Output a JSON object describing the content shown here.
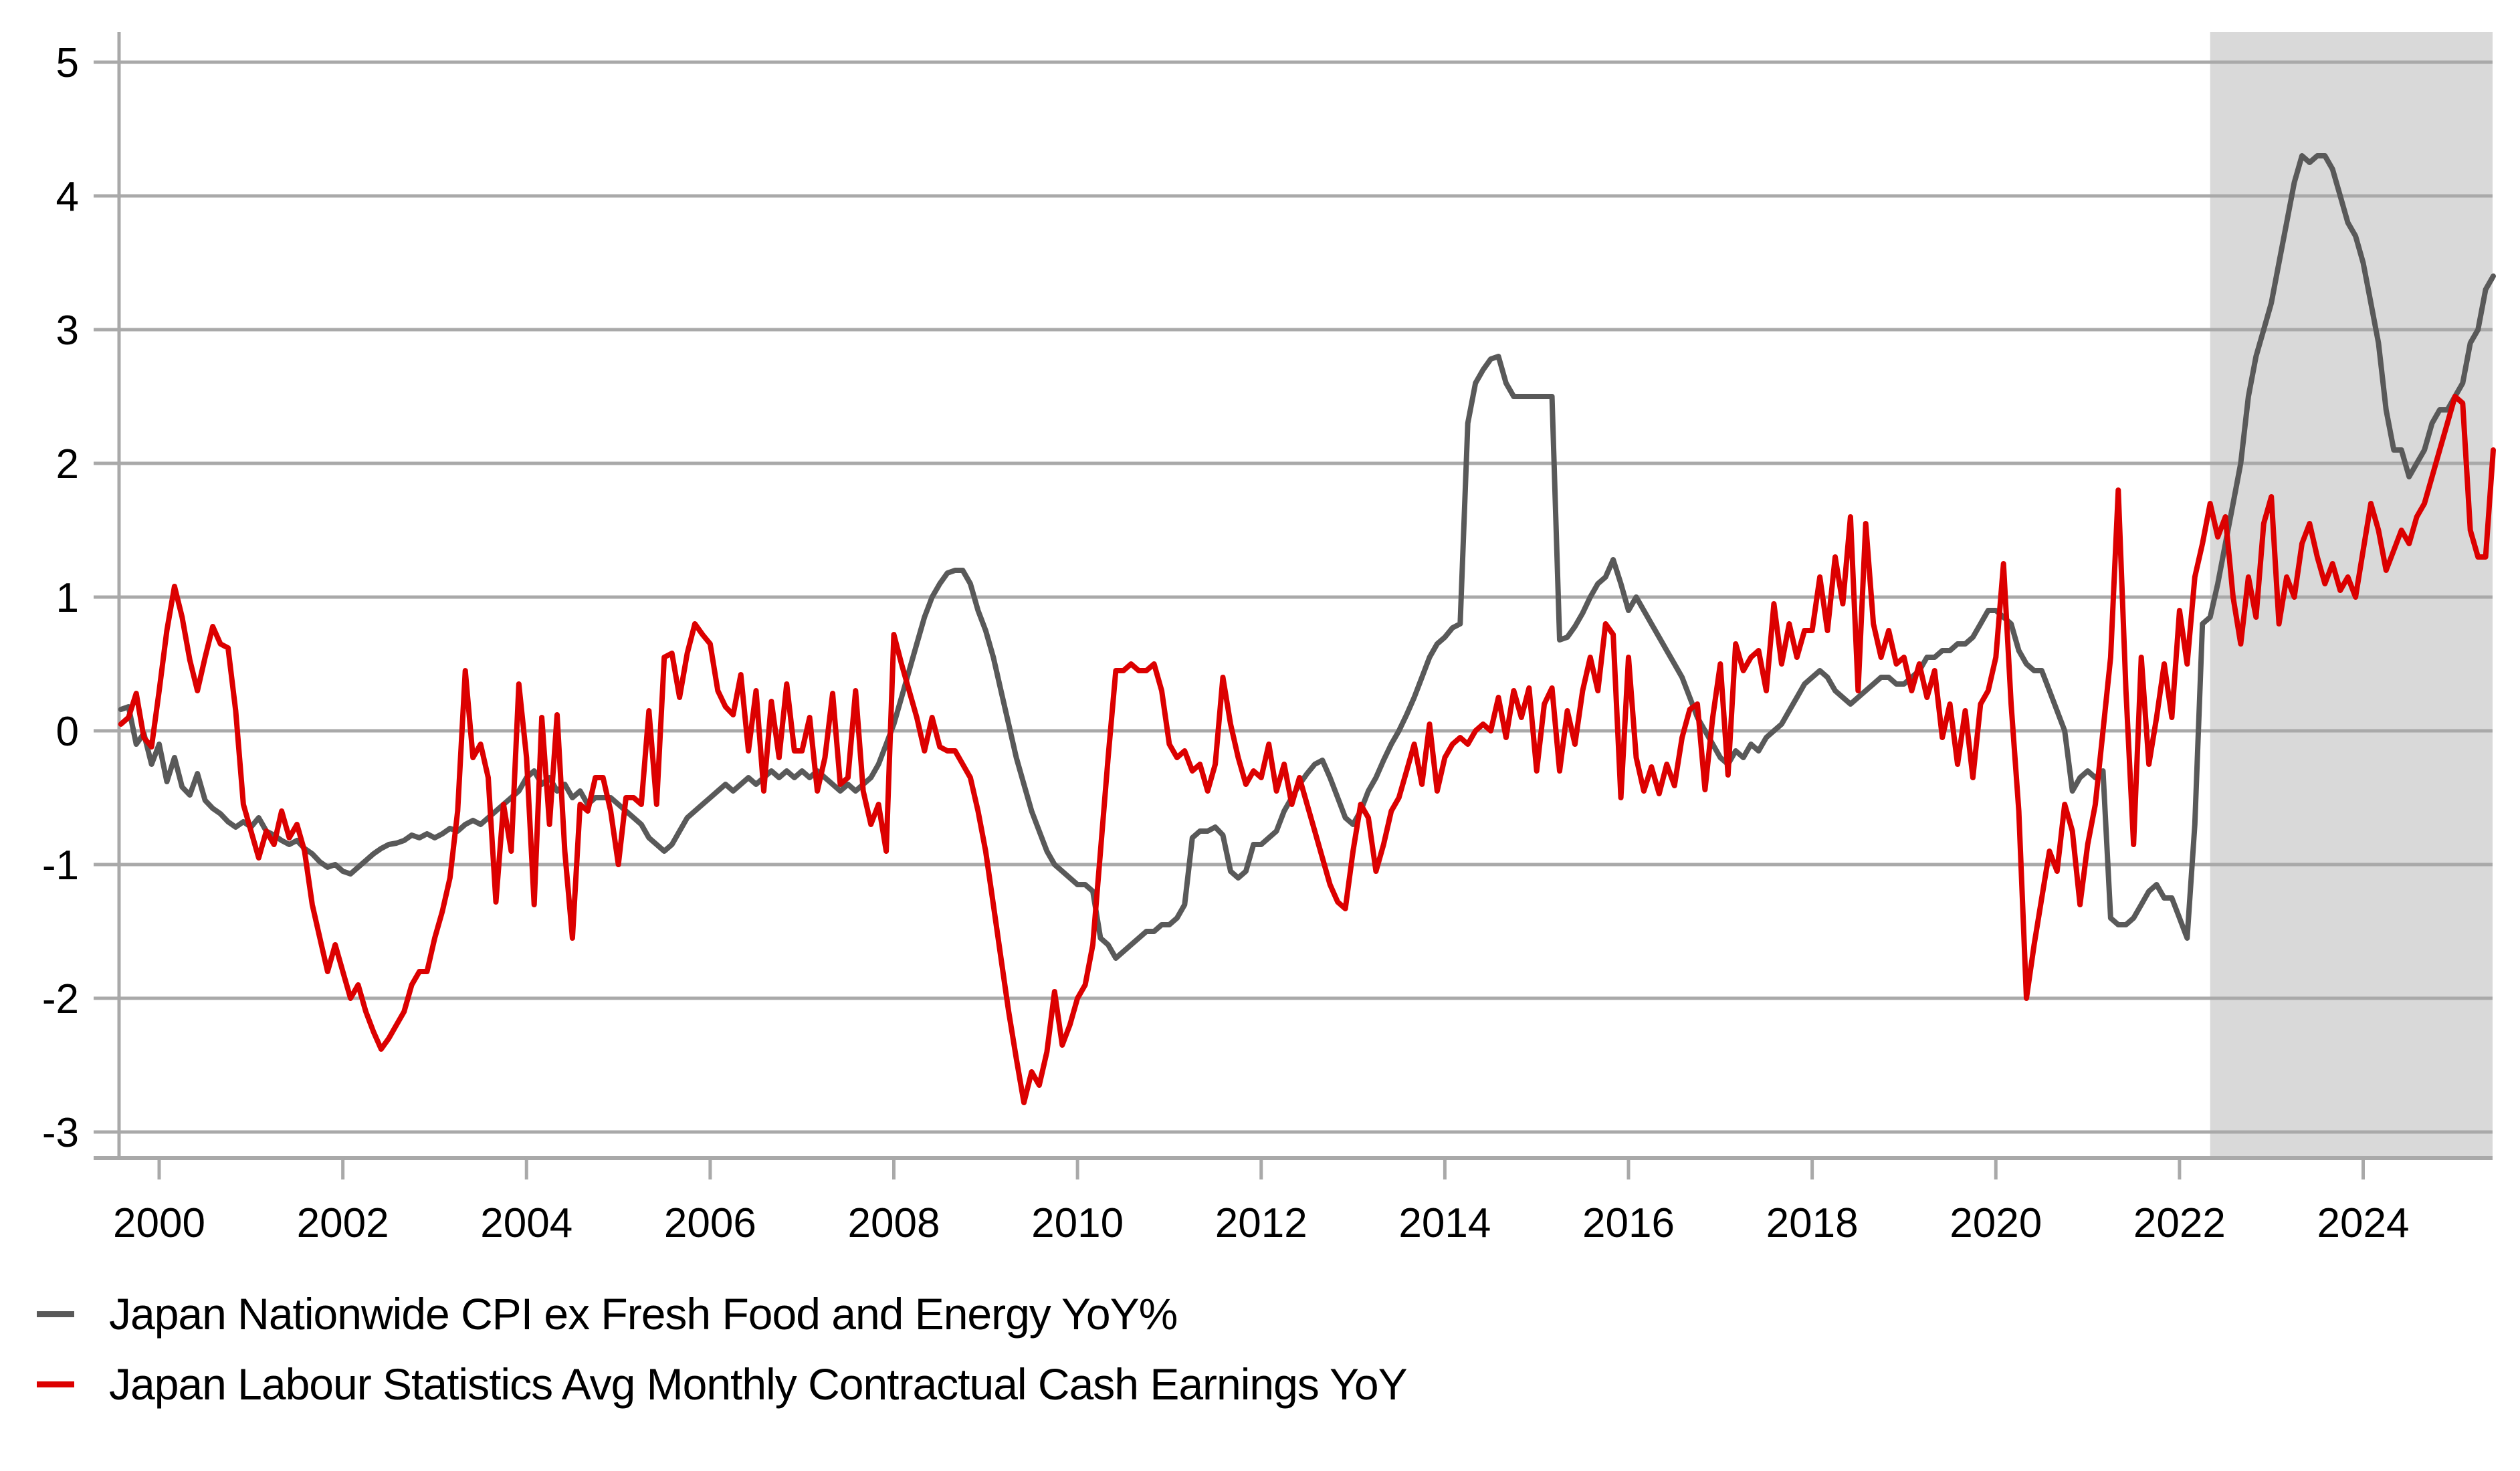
{
  "chart_data": {
    "type": "line",
    "title": "",
    "xlabel": "",
    "ylabel": "",
    "x_start": "1999-08",
    "x_freq": "monthly",
    "x_tick_labels": [
      "2000",
      "2002",
      "2004",
      "2006",
      "2008",
      "2010",
      "2012",
      "2014",
      "2016",
      "2018",
      "2020",
      "2022",
      "2024"
    ],
    "y_ticks": [
      5,
      4,
      3,
      2,
      1,
      0,
      -1,
      -2,
      -3
    ],
    "ylim": [
      -3.2,
      5.2
    ],
    "grid": true,
    "legend_position": "bottom-left",
    "background_color": "#ffffff",
    "gridline_color": "#a9a9a9",
    "shaded_region": {
      "start": "2022-05",
      "end": "2025-06",
      "color": "#d9d9d9"
    },
    "series": [
      {
        "name": "Japan Nationwide CPI ex Fresh Food and Energy YoY%",
        "color": "#595959",
        "values": [
          0.16,
          0.18,
          -0.1,
          -0.02,
          -0.25,
          -0.1,
          -0.38,
          -0.2,
          -0.42,
          -0.48,
          -0.32,
          -0.52,
          -0.58,
          -0.62,
          -0.68,
          -0.72,
          -0.68,
          -0.72,
          -0.65,
          -0.75,
          -0.78,
          -0.82,
          -0.85,
          -0.82,
          -0.88,
          -0.92,
          -0.98,
          -1.02,
          -1.0,
          -1.05,
          -1.07,
          -1.02,
          -0.97,
          -0.92,
          -0.88,
          -0.85,
          -0.84,
          -0.82,
          -0.78,
          -0.8,
          -0.77,
          -0.8,
          -0.77,
          -0.73,
          -0.75,
          -0.7,
          -0.67,
          -0.7,
          -0.65,
          -0.6,
          -0.55,
          -0.5,
          -0.45,
          -0.35,
          -0.3,
          -0.4,
          -0.35,
          -0.45,
          -0.4,
          -0.5,
          -0.45,
          -0.55,
          -0.5,
          -0.5,
          -0.5,
          -0.55,
          -0.6,
          -0.65,
          -0.7,
          -0.8,
          -0.85,
          -0.9,
          -0.85,
          -0.75,
          -0.65,
          -0.6,
          -0.55,
          -0.5,
          -0.45,
          -0.4,
          -0.45,
          -0.4,
          -0.35,
          -0.4,
          -0.35,
          -0.3,
          -0.35,
          -0.3,
          -0.35,
          -0.3,
          -0.35,
          -0.3,
          -0.35,
          -0.4,
          -0.45,
          -0.4,
          -0.45,
          -0.4,
          -0.35,
          -0.25,
          -0.1,
          0.05,
          0.25,
          0.45,
          0.65,
          0.85,
          1.0,
          1.1,
          1.18,
          1.2,
          1.2,
          1.1,
          0.9,
          0.75,
          0.55,
          0.3,
          0.05,
          -0.2,
          -0.4,
          -0.6,
          -0.75,
          -0.9,
          -1.0,
          -1.05,
          -1.1,
          -1.15,
          -1.15,
          -1.2,
          -1.55,
          -1.6,
          -1.7,
          -1.65,
          -1.6,
          -1.55,
          -1.5,
          -1.5,
          -1.45,
          -1.45,
          -1.4,
          -1.3,
          -0.8,
          -0.75,
          -0.75,
          -0.72,
          -0.78,
          -1.05,
          -1.1,
          -1.05,
          -0.85,
          -0.85,
          -0.8,
          -0.75,
          -0.6,
          -0.5,
          -0.4,
          -0.32,
          -0.25,
          -0.22,
          -0.35,
          -0.5,
          -0.65,
          -0.7,
          -0.6,
          -0.45,
          -0.35,
          -0.22,
          -0.1,
          0.0,
          0.12,
          0.25,
          0.4,
          0.55,
          0.65,
          0.7,
          0.77,
          0.8,
          2.3,
          2.6,
          2.7,
          2.78,
          2.8,
          2.6,
          2.5,
          2.5,
          2.5,
          2.5,
          2.5,
          2.5,
          0.68,
          0.7,
          0.78,
          0.88,
          1.0,
          1.1,
          1.15,
          1.28,
          1.1,
          0.9,
          1.0,
          0.9,
          0.8,
          0.7,
          0.6,
          0.5,
          0.4,
          0.25,
          0.1,
          0.0,
          -0.1,
          -0.2,
          -0.25,
          -0.15,
          -0.2,
          -0.1,
          -0.15,
          -0.05,
          0.0,
          0.05,
          0.15,
          0.25,
          0.35,
          0.4,
          0.45,
          0.4,
          0.3,
          0.25,
          0.2,
          0.25,
          0.3,
          0.35,
          0.4,
          0.4,
          0.35,
          0.35,
          0.4,
          0.45,
          0.55,
          0.55,
          0.6,
          0.6,
          0.65,
          0.65,
          0.7,
          0.8,
          0.9,
          0.9,
          0.85,
          0.8,
          0.6,
          0.5,
          0.45,
          0.45,
          0.3,
          0.15,
          0.0,
          -0.45,
          -0.35,
          -0.3,
          -0.35,
          -0.3,
          -1.4,
          -1.45,
          -1.45,
          -1.4,
          -1.3,
          -1.2,
          -1.15,
          -1.25,
          -1.25,
          -1.4,
          -1.55,
          -0.7,
          0.8,
          0.85,
          1.1,
          1.4,
          1.7,
          2.0,
          2.5,
          2.8,
          3.0,
          3.2,
          3.5,
          3.8,
          4.1,
          4.3,
          4.25,
          4.3,
          4.3,
          4.2,
          4.0,
          3.8,
          3.7,
          3.5,
          3.2,
          2.9,
          2.4,
          2.1,
          2.1,
          1.9,
          2.0,
          2.1,
          2.3,
          2.4,
          2.4,
          2.5,
          2.6,
          2.9,
          3.0,
          3.3,
          3.4
        ]
      },
      {
        "name": "Japan Labour Statistics Avg Monthly Contractual Cash Earnings YoY",
        "color": "#dc0000",
        "values": [
          0.05,
          0.1,
          0.28,
          -0.05,
          -0.12,
          0.3,
          0.75,
          1.08,
          0.85,
          0.53,
          0.3,
          0.55,
          0.78,
          0.65,
          0.62,
          0.15,
          -0.55,
          -0.75,
          -0.95,
          -0.75,
          -0.85,
          -0.6,
          -0.8,
          -0.7,
          -0.9,
          -1.3,
          -1.55,
          -1.8,
          -1.6,
          -1.8,
          -2.0,
          -1.9,
          -2.1,
          -2.25,
          -2.38,
          -2.3,
          -2.2,
          -2.1,
          -1.9,
          -1.8,
          -1.8,
          -1.55,
          -1.35,
          -1.1,
          -0.6,
          0.45,
          -0.2,
          -0.1,
          -0.35,
          -1.28,
          -0.55,
          -0.9,
          0.35,
          -0.2,
          -1.3,
          0.1,
          -0.7,
          0.12,
          -0.9,
          -1.55,
          -0.55,
          -0.6,
          -0.35,
          -0.35,
          -0.6,
          -1.0,
          -0.5,
          -0.5,
          -0.55,
          0.15,
          -0.55,
          0.55,
          0.58,
          0.25,
          0.58,
          0.8,
          0.72,
          0.65,
          0.3,
          0.18,
          0.12,
          0.42,
          -0.15,
          0.3,
          -0.45,
          0.22,
          -0.2,
          0.35,
          -0.15,
          -0.15,
          0.1,
          -0.45,
          -0.2,
          0.28,
          -0.4,
          -0.35,
          0.3,
          -0.45,
          -0.7,
          -0.55,
          -0.9,
          0.72,
          0.5,
          0.3,
          0.1,
          -0.15,
          0.1,
          -0.12,
          -0.15,
          -0.15,
          -0.25,
          -0.35,
          -0.6,
          -0.9,
          -1.3,
          -1.7,
          -2.1,
          -2.45,
          -2.78,
          -2.55,
          -2.65,
          -2.4,
          -1.95,
          -2.35,
          -2.2,
          -2.0,
          -1.9,
          -1.6,
          -0.9,
          -0.2,
          0.45,
          0.45,
          0.5,
          0.45,
          0.45,
          0.5,
          0.3,
          -0.1,
          -0.2,
          -0.15,
          -0.3,
          -0.25,
          -0.45,
          -0.25,
          0.4,
          0.05,
          -0.2,
          -0.4,
          -0.3,
          -0.35,
          -0.1,
          -0.45,
          -0.25,
          -0.55,
          -0.35,
          -0.55,
          -0.75,
          -0.95,
          -1.15,
          -1.28,
          -1.33,
          -0.9,
          -0.55,
          -0.65,
          -1.05,
          -0.85,
          -0.6,
          -0.5,
          -0.3,
          -0.1,
          -0.4,
          0.05,
          -0.45,
          -0.2,
          -0.1,
          -0.05,
          -0.1,
          0.0,
          0.05,
          0.0,
          0.25,
          -0.05,
          0.3,
          0.1,
          0.32,
          -0.3,
          0.2,
          0.32,
          -0.3,
          0.15,
          -0.1,
          0.3,
          0.55,
          0.3,
          0.8,
          0.72,
          -0.5,
          0.55,
          -0.2,
          -0.45,
          -0.27,
          -0.47,
          -0.25,
          -0.41,
          -0.05,
          0.16,
          0.2,
          -0.44,
          0.1,
          0.5,
          -0.33,
          0.65,
          0.45,
          0.55,
          0.6,
          0.3,
          0.95,
          0.5,
          0.8,
          0.55,
          0.75,
          0.75,
          1.15,
          0.75,
          1.3,
          0.95,
          1.6,
          0.3,
          1.55,
          0.8,
          0.55,
          0.75,
          0.5,
          0.55,
          0.3,
          0.5,
          0.25,
          0.45,
          -0.05,
          0.2,
          -0.25,
          0.15,
          -0.35,
          0.2,
          0.3,
          0.55,
          1.25,
          0.2,
          -0.6,
          -2.0,
          -1.6,
          -1.25,
          -0.9,
          -1.05,
          -0.55,
          -0.75,
          -1.3,
          -0.85,
          -0.55,
          0.0,
          0.55,
          1.8,
          0.3,
          -0.85,
          0.55,
          -0.25,
          0.1,
          0.5,
          0.1,
          0.9,
          0.5,
          1.15,
          1.4,
          1.7,
          1.45,
          1.6,
          1.0,
          0.65,
          1.15,
          0.85,
          1.55,
          1.75,
          0.8,
          1.15,
          1.0,
          1.4,
          1.55,
          1.3,
          1.1,
          1.25,
          1.05,
          1.15,
          1.0,
          1.35,
          1.7,
          1.5,
          1.2,
          1.35,
          1.5,
          1.4,
          1.6,
          1.7,
          1.9,
          2.1,
          2.3,
          2.5,
          2.45,
          1.5,
          1.3,
          1.3,
          2.1
        ]
      }
    ]
  }
}
